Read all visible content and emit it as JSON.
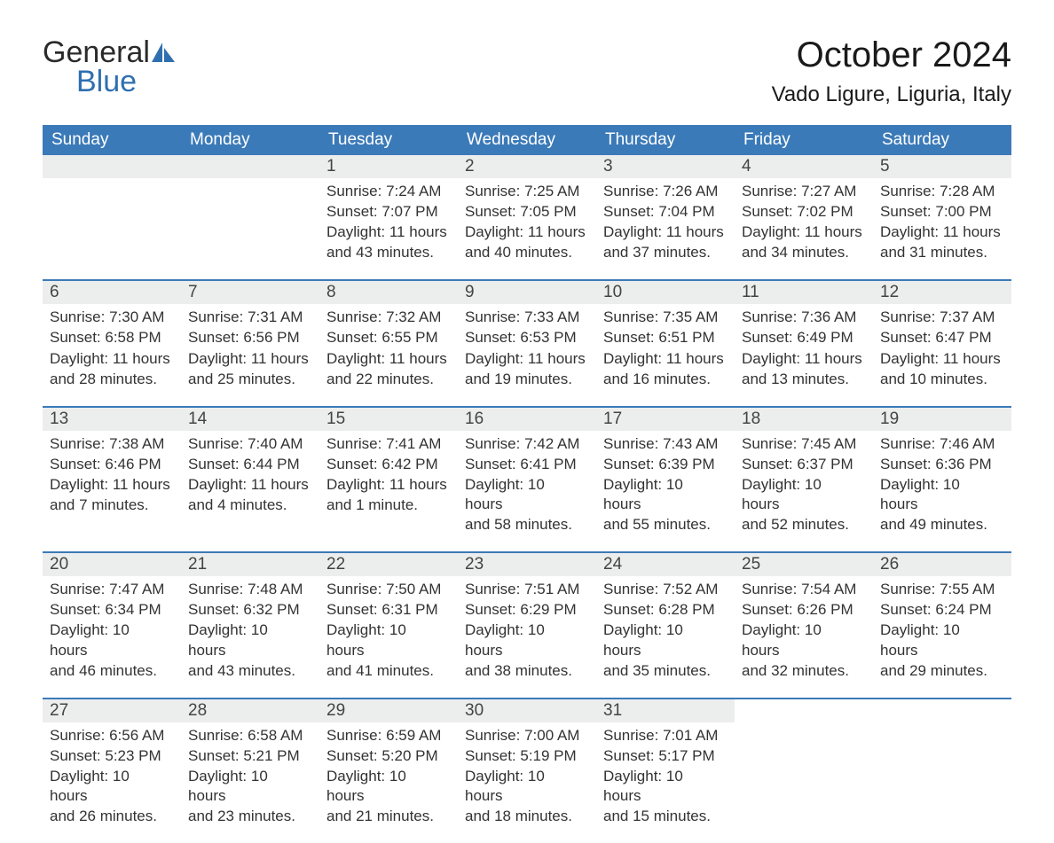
{
  "logo": {
    "text_top": "General",
    "text_bottom": "Blue"
  },
  "title": "October 2024",
  "location": "Vado Ligure, Liguria, Italy",
  "colors": {
    "header_bg": "#3b7ab8",
    "header_text": "#ffffff",
    "day_bar_bg": "#eceded",
    "logo_blue": "#2f6fb0",
    "body_text": "#333333",
    "border": "#3b7ab8"
  },
  "day_names": [
    "Sunday",
    "Monday",
    "Tuesday",
    "Wednesday",
    "Thursday",
    "Friday",
    "Saturday"
  ],
  "weeks": [
    [
      null,
      null,
      {
        "n": "1",
        "sunrise": "Sunrise: 7:24 AM",
        "sunset": "Sunset: 7:07 PM",
        "d1": "Daylight: 11 hours",
        "d2": "and 43 minutes."
      },
      {
        "n": "2",
        "sunrise": "Sunrise: 7:25 AM",
        "sunset": "Sunset: 7:05 PM",
        "d1": "Daylight: 11 hours",
        "d2": "and 40 minutes."
      },
      {
        "n": "3",
        "sunrise": "Sunrise: 7:26 AM",
        "sunset": "Sunset: 7:04 PM",
        "d1": "Daylight: 11 hours",
        "d2": "and 37 minutes."
      },
      {
        "n": "4",
        "sunrise": "Sunrise: 7:27 AM",
        "sunset": "Sunset: 7:02 PM",
        "d1": "Daylight: 11 hours",
        "d2": "and 34 minutes."
      },
      {
        "n": "5",
        "sunrise": "Sunrise: 7:28 AM",
        "sunset": "Sunset: 7:00 PM",
        "d1": "Daylight: 11 hours",
        "d2": "and 31 minutes."
      }
    ],
    [
      {
        "n": "6",
        "sunrise": "Sunrise: 7:30 AM",
        "sunset": "Sunset: 6:58 PM",
        "d1": "Daylight: 11 hours",
        "d2": "and 28 minutes."
      },
      {
        "n": "7",
        "sunrise": "Sunrise: 7:31 AM",
        "sunset": "Sunset: 6:56 PM",
        "d1": "Daylight: 11 hours",
        "d2": "and 25 minutes."
      },
      {
        "n": "8",
        "sunrise": "Sunrise: 7:32 AM",
        "sunset": "Sunset: 6:55 PM",
        "d1": "Daylight: 11 hours",
        "d2": "and 22 minutes."
      },
      {
        "n": "9",
        "sunrise": "Sunrise: 7:33 AM",
        "sunset": "Sunset: 6:53 PM",
        "d1": "Daylight: 11 hours",
        "d2": "and 19 minutes."
      },
      {
        "n": "10",
        "sunrise": "Sunrise: 7:35 AM",
        "sunset": "Sunset: 6:51 PM",
        "d1": "Daylight: 11 hours",
        "d2": "and 16 minutes."
      },
      {
        "n": "11",
        "sunrise": "Sunrise: 7:36 AM",
        "sunset": "Sunset: 6:49 PM",
        "d1": "Daylight: 11 hours",
        "d2": "and 13 minutes."
      },
      {
        "n": "12",
        "sunrise": "Sunrise: 7:37 AM",
        "sunset": "Sunset: 6:47 PM",
        "d1": "Daylight: 11 hours",
        "d2": "and 10 minutes."
      }
    ],
    [
      {
        "n": "13",
        "sunrise": "Sunrise: 7:38 AM",
        "sunset": "Sunset: 6:46 PM",
        "d1": "Daylight: 11 hours",
        "d2": "and 7 minutes."
      },
      {
        "n": "14",
        "sunrise": "Sunrise: 7:40 AM",
        "sunset": "Sunset: 6:44 PM",
        "d1": "Daylight: 11 hours",
        "d2": "and 4 minutes."
      },
      {
        "n": "15",
        "sunrise": "Sunrise: 7:41 AM",
        "sunset": "Sunset: 6:42 PM",
        "d1": "Daylight: 11 hours",
        "d2": "and 1 minute."
      },
      {
        "n": "16",
        "sunrise": "Sunrise: 7:42 AM",
        "sunset": "Sunset: 6:41 PM",
        "d1": "Daylight: 10 hours",
        "d2": "and 58 minutes."
      },
      {
        "n": "17",
        "sunrise": "Sunrise: 7:43 AM",
        "sunset": "Sunset: 6:39 PM",
        "d1": "Daylight: 10 hours",
        "d2": "and 55 minutes."
      },
      {
        "n": "18",
        "sunrise": "Sunrise: 7:45 AM",
        "sunset": "Sunset: 6:37 PM",
        "d1": "Daylight: 10 hours",
        "d2": "and 52 minutes."
      },
      {
        "n": "19",
        "sunrise": "Sunrise: 7:46 AM",
        "sunset": "Sunset: 6:36 PM",
        "d1": "Daylight: 10 hours",
        "d2": "and 49 minutes."
      }
    ],
    [
      {
        "n": "20",
        "sunrise": "Sunrise: 7:47 AM",
        "sunset": "Sunset: 6:34 PM",
        "d1": "Daylight: 10 hours",
        "d2": "and 46 minutes."
      },
      {
        "n": "21",
        "sunrise": "Sunrise: 7:48 AM",
        "sunset": "Sunset: 6:32 PM",
        "d1": "Daylight: 10 hours",
        "d2": "and 43 minutes."
      },
      {
        "n": "22",
        "sunrise": "Sunrise: 7:50 AM",
        "sunset": "Sunset: 6:31 PM",
        "d1": "Daylight: 10 hours",
        "d2": "and 41 minutes."
      },
      {
        "n": "23",
        "sunrise": "Sunrise: 7:51 AM",
        "sunset": "Sunset: 6:29 PM",
        "d1": "Daylight: 10 hours",
        "d2": "and 38 minutes."
      },
      {
        "n": "24",
        "sunrise": "Sunrise: 7:52 AM",
        "sunset": "Sunset: 6:28 PM",
        "d1": "Daylight: 10 hours",
        "d2": "and 35 minutes."
      },
      {
        "n": "25",
        "sunrise": "Sunrise: 7:54 AM",
        "sunset": "Sunset: 6:26 PM",
        "d1": "Daylight: 10 hours",
        "d2": "and 32 minutes."
      },
      {
        "n": "26",
        "sunrise": "Sunrise: 7:55 AM",
        "sunset": "Sunset: 6:24 PM",
        "d1": "Daylight: 10 hours",
        "d2": "and 29 minutes."
      }
    ],
    [
      {
        "n": "27",
        "sunrise": "Sunrise: 6:56 AM",
        "sunset": "Sunset: 5:23 PM",
        "d1": "Daylight: 10 hours",
        "d2": "and 26 minutes."
      },
      {
        "n": "28",
        "sunrise": "Sunrise: 6:58 AM",
        "sunset": "Sunset: 5:21 PM",
        "d1": "Daylight: 10 hours",
        "d2": "and 23 minutes."
      },
      {
        "n": "29",
        "sunrise": "Sunrise: 6:59 AM",
        "sunset": "Sunset: 5:20 PM",
        "d1": "Daylight: 10 hours",
        "d2": "and 21 minutes."
      },
      {
        "n": "30",
        "sunrise": "Sunrise: 7:00 AM",
        "sunset": "Sunset: 5:19 PM",
        "d1": "Daylight: 10 hours",
        "d2": "and 18 minutes."
      },
      {
        "n": "31",
        "sunrise": "Sunrise: 7:01 AM",
        "sunset": "Sunset: 5:17 PM",
        "d1": "Daylight: 10 hours",
        "d2": "and 15 minutes."
      },
      null,
      null
    ]
  ]
}
